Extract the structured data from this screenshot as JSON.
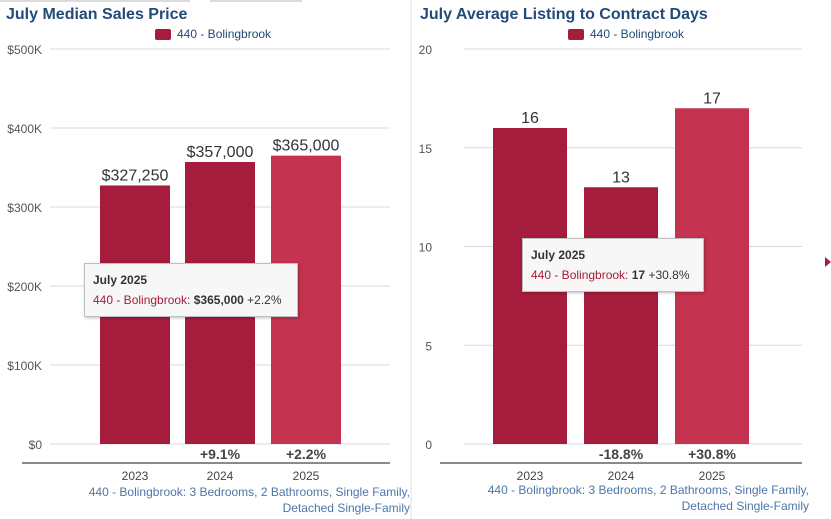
{
  "chart_data": [
    {
      "type": "bar",
      "title": "July Median Sales Price",
      "legend": {
        "label": "440 - Bolingbrook",
        "color": "#a61c3c",
        "position": "top-center"
      },
      "categories": [
        "2023",
        "2024",
        "2025"
      ],
      "values": [
        327250,
        357000,
        365000
      ],
      "data_labels": [
        "$327,250",
        "$357,000",
        "$365,000"
      ],
      "change_labels": [
        "",
        "+9.1%",
        "+2.2%"
      ],
      "bar_colors": [
        "#a61c3c",
        "#a61c3c",
        "#c43350"
      ],
      "ylim": [
        0,
        500000
      ],
      "yticks": [
        0,
        100000,
        200000,
        300000,
        400000,
        500000
      ],
      "ytick_labels": [
        "$0",
        "$100K",
        "$200K",
        "$300K",
        "$400K",
        "$500K"
      ],
      "grid": true,
      "footnote": [
        "440 - Bolingbrook: 3 Bedrooms, 2 Bathrooms, Single Family,",
        "Detached Single-Family"
      ],
      "tooltip": {
        "title": "July 2025",
        "series": "440 - Bolingbrook:",
        "value": "$365,000",
        "change": "+2.2%"
      }
    },
    {
      "type": "bar",
      "title": "July Average Listing to Contract Days",
      "legend": {
        "label": "440 - Bolingbrook",
        "color": "#a61c3c",
        "position": "top-center"
      },
      "categories": [
        "2023",
        "2024",
        "2025"
      ],
      "values": [
        16,
        13,
        17
      ],
      "data_labels": [
        "16",
        "13",
        "17"
      ],
      "change_labels": [
        "",
        "-18.8%",
        "+30.8%"
      ],
      "bar_colors": [
        "#a61c3c",
        "#a61c3c",
        "#c43350"
      ],
      "ylim": [
        0,
        20
      ],
      "yticks": [
        0,
        5,
        10,
        15,
        20
      ],
      "ytick_labels": [
        "0",
        "5",
        "10",
        "15",
        "20"
      ],
      "grid": true,
      "footnote": [
        "440 - Bolingbrook: 3 Bedrooms, 2 Bathrooms, Single Family,",
        "Detached Single-Family"
      ],
      "tooltip": {
        "title": "July 2025",
        "series": "440 - Bolingbrook:",
        "value": "17",
        "change": "+30.8%"
      }
    }
  ]
}
